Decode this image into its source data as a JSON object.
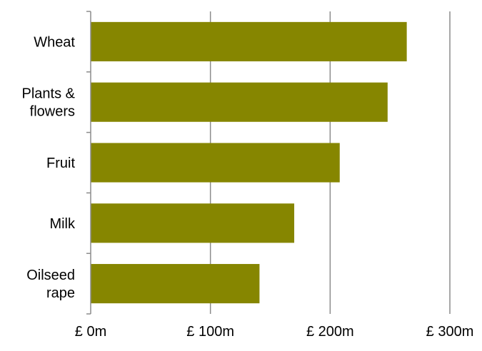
{
  "chart_data": {
    "type": "bar",
    "orientation": "horizontal",
    "categories": [
      [
        "Wheat"
      ],
      [
        "Plants &",
        "flowers"
      ],
      [
        "Fruit"
      ],
      [
        "Milk"
      ],
      [
        "Oilseed",
        "rape"
      ]
    ],
    "values": [
      264,
      248,
      208,
      170,
      141
    ],
    "unit": "£m",
    "xlim": [
      0,
      300
    ],
    "xticks": [
      0,
      100,
      200,
      300
    ],
    "tick_labels": [
      "£  0m",
      "£  100m",
      "£  200m",
      "£  300m"
    ],
    "grid": "vertical",
    "colors": {
      "bar": "#868600",
      "grid": "#8c8c8c",
      "axis": "#8c8c8c"
    }
  }
}
